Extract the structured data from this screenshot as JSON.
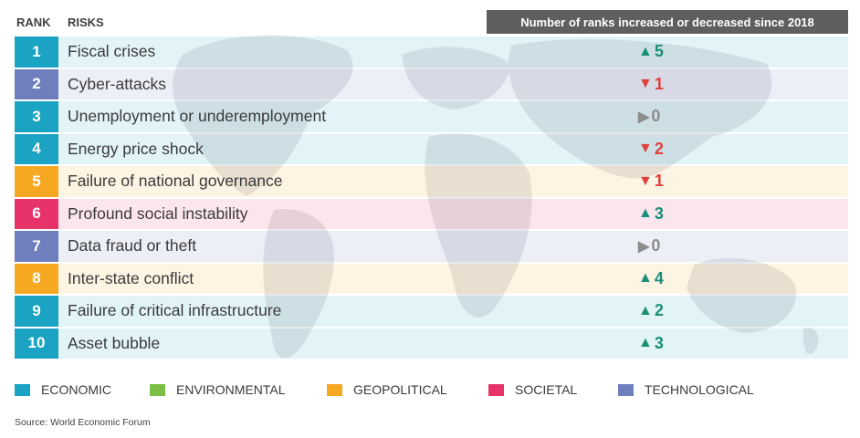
{
  "header": {
    "rank_label": "RANK",
    "risks_label": "RISKS",
    "change_label": "Number of ranks increased or decreased since 2018"
  },
  "colors": {
    "economic": "#1aa3c2",
    "environmental": "#7bbf44",
    "geopolitical": "#f7a823",
    "societal": "#e8336a",
    "technological": "#6f7fbd",
    "up": "#1a8f77",
    "down": "#e0413e",
    "flat": "#8c8c8c"
  },
  "rows": [
    {
      "rank": "1",
      "risk": "Fiscal crises",
      "category": "economic",
      "direction": "up",
      "arrow": "▲",
      "change": "5"
    },
    {
      "rank": "2",
      "risk": "Cyber-attacks",
      "category": "technological",
      "direction": "down",
      "arrow": "▼",
      "change": "1"
    },
    {
      "rank": "3",
      "risk": "Unemployment or underemployment",
      "category": "economic",
      "direction": "flat",
      "arrow": "▶",
      "change": "0"
    },
    {
      "rank": "4",
      "risk": "Energy price shock",
      "category": "economic",
      "direction": "down",
      "arrow": "▼",
      "change": "2"
    },
    {
      "rank": "5",
      "risk": "Failure of national governance",
      "category": "geopolitical",
      "direction": "down",
      "arrow": "▼",
      "change": "1"
    },
    {
      "rank": "6",
      "risk": "Profound social instability",
      "category": "societal",
      "direction": "up",
      "arrow": "▲",
      "change": "3"
    },
    {
      "rank": "7",
      "risk": "Data fraud or theft",
      "category": "technological",
      "direction": "flat",
      "arrow": "▶",
      "change": "0"
    },
    {
      "rank": "8",
      "risk": "Inter-state conflict",
      "category": "geopolitical",
      "direction": "up",
      "arrow": "▲",
      "change": "4"
    },
    {
      "rank": "9",
      "risk": "Failure of critical infrastructure",
      "category": "economic",
      "direction": "up",
      "arrow": "▲",
      "change": "2"
    },
    {
      "rank": "10",
      "risk": "Asset bubble",
      "category": "economic",
      "direction": "up",
      "arrow": "▲",
      "change": "3"
    }
  ],
  "legend": [
    {
      "label": "ECONOMIC",
      "category": "economic"
    },
    {
      "label": "ENVIRONMENTAL",
      "category": "environmental"
    },
    {
      "label": "GEOPOLITICAL",
      "category": "geopolitical"
    },
    {
      "label": "SOCIETAL",
      "category": "societal"
    },
    {
      "label": "TECHNOLOGICAL",
      "category": "technological"
    }
  ],
  "source": "Source: World Economic Forum",
  "chart_data": {
    "type": "table",
    "columns": [
      "RANK",
      "RISKS",
      "Number of ranks increased or decreased since 2018"
    ],
    "rows": [
      [
        "1",
        "Fiscal crises",
        5
      ],
      [
        "2",
        "Cyber-attacks",
        -1
      ],
      [
        "3",
        "Unemployment or underemployment",
        0
      ],
      [
        "4",
        "Energy price shock",
        -2
      ],
      [
        "5",
        "Failure of national governance",
        -1
      ],
      [
        "6",
        "Profound social instability",
        3
      ],
      [
        "7",
        "Data fraud or theft",
        0
      ],
      [
        "8",
        "Inter-state conflict",
        4
      ],
      [
        "9",
        "Failure of critical infrastructure",
        2
      ],
      [
        "10",
        "Asset bubble",
        3
      ]
    ],
    "categories": [
      "ECONOMIC",
      "ENVIRONMENTAL",
      "GEOPOLITICAL",
      "SOCIETAL",
      "TECHNOLOGICAL"
    ]
  }
}
